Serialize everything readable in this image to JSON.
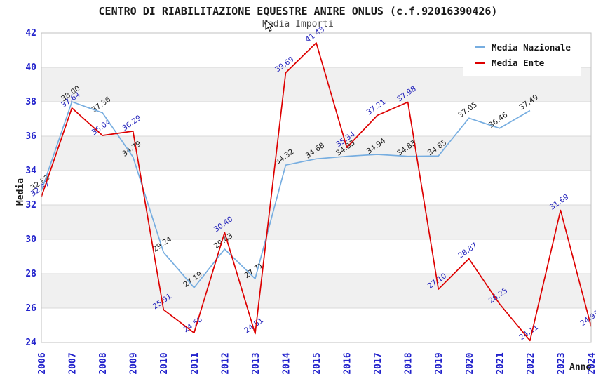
{
  "chart_data": {
    "type": "line",
    "title": "CENTRO DI RIABILITAZIONE EQUESTRE ANIRE ONLUS (c.f.92016390426)",
    "subtitle": "Media Importi",
    "xlabel": "Anno",
    "ylabel": "Media",
    "ylim": [
      24,
      42
    ],
    "yticks": [
      24,
      26,
      28,
      30,
      32,
      34,
      36,
      38,
      40,
      42
    ],
    "categories": [
      "2006",
      "2007",
      "2008",
      "2009",
      "2010",
      "2011",
      "2012",
      "2013",
      "2014",
      "2015",
      "2016",
      "2017",
      "2018",
      "2019",
      "2020",
      "2021",
      "2022",
      "2023",
      "2024"
    ],
    "series": [
      {
        "name": "Media Nazionale",
        "color": "#76ade0",
        "label_color": "#1a1a1a",
        "values": [
          32.82,
          38.0,
          37.36,
          34.79,
          29.24,
          27.19,
          29.43,
          27.71,
          34.32,
          34.68,
          34.83,
          34.94,
          34.83,
          34.85,
          37.05,
          36.46,
          37.49,
          null,
          null
        ]
      },
      {
        "name": "Media Ente",
        "color": "#dd0000",
        "label_color": "#2222bb",
        "values": [
          32.47,
          37.64,
          36.04,
          36.29,
          25.91,
          24.56,
          30.4,
          24.51,
          39.69,
          41.43,
          35.34,
          37.21,
          37.98,
          27.1,
          28.87,
          26.25,
          24.11,
          31.69,
          24.93
        ]
      }
    ],
    "legend_position": "top-right",
    "grid": true,
    "axis_tick_color": "#2222cc",
    "grid_color": "#d9d9d9",
    "border_color": "#c0c0c0",
    "band_colors": [
      "#ffffff",
      "#f0f0f0"
    ]
  },
  "icons": {
    "mouse_cursor": "pointer-arrow"
  }
}
